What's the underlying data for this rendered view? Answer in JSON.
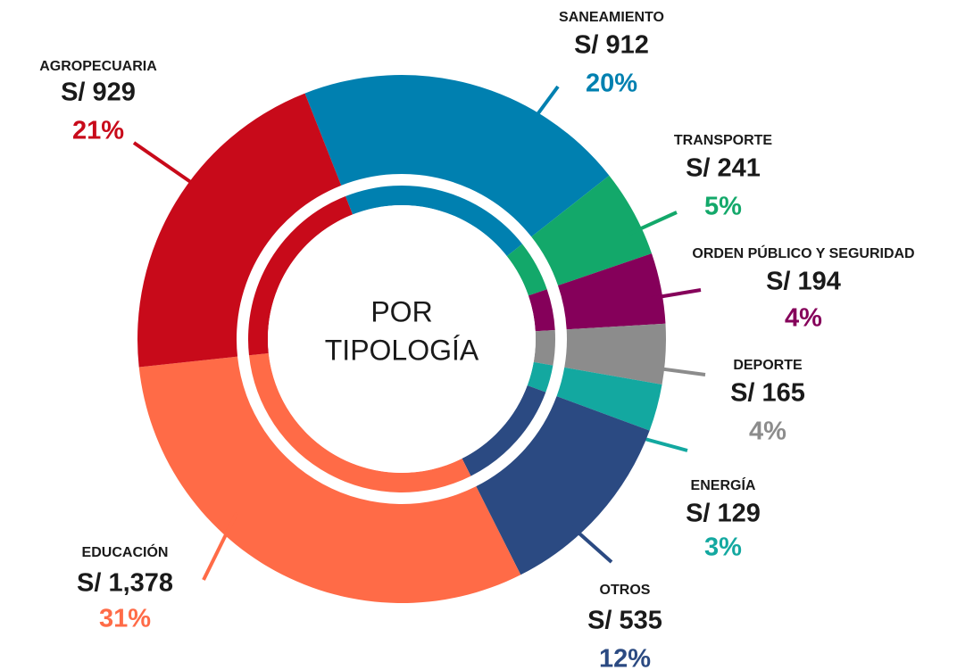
{
  "chart_data": {
    "type": "donut",
    "center_text": [
      "POR",
      "TIPOLOGÍA"
    ],
    "categories": [
      "SANEAMIENTO",
      "TRANSPORTE",
      "ORDEN PÚBLICO Y SEGURIDAD",
      "DEPORTE",
      "ENERGÍA",
      "OTROS",
      "EDUCACIÓN",
      "AGROPECUARIA"
    ],
    "values": [
      912,
      241,
      194,
      165,
      129,
      535,
      1378,
      929
    ],
    "value_labels": [
      "S/ 912",
      "S/ 241",
      "S/ 194",
      "S/ 165",
      "S/ 129",
      "S/ 535",
      "S/ 1,378",
      "S/ 929"
    ],
    "percentages": [
      20,
      5,
      4,
      4,
      3,
      12,
      31,
      21
    ],
    "percentage_labels": [
      "20%",
      "5%",
      "4%",
      "4%",
      "3%",
      "12%",
      "31%",
      "21%"
    ],
    "colors": [
      "#0080b0",
      "#13a86a",
      "#85005a",
      "#8c8c8c",
      "#13a8a0",
      "#2b4a82",
      "#ff6b47",
      "#c80a1a"
    ]
  }
}
